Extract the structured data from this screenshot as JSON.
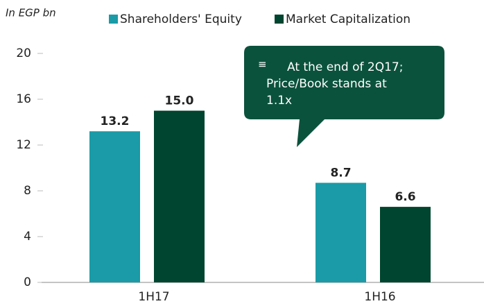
{
  "chart_data": {
    "type": "bar",
    "subtitle": "In EGP bn",
    "categories": [
      "1H17",
      "1H16"
    ],
    "series": [
      {
        "name": "Shareholders' Equity",
        "color": "#1a9ba7",
        "values": [
          13.2,
          8.7
        ],
        "value_labels": [
          "13.2",
          "8.7"
        ]
      },
      {
        "name": "Market Capitalization",
        "color": "#00452f",
        "values": [
          15,
          6.6
        ],
        "value_labels": [
          "15.0",
          "6.6"
        ]
      }
    ],
    "ylim": [
      0,
      20
    ],
    "yticks": [
      0,
      4,
      8,
      12,
      16,
      20
    ],
    "grid": false,
    "annotation": {
      "lines": [
        "At the end of 2Q17;",
        "Price/Book  stands at",
        "1.1x"
      ],
      "color": "#0b523c"
    }
  }
}
